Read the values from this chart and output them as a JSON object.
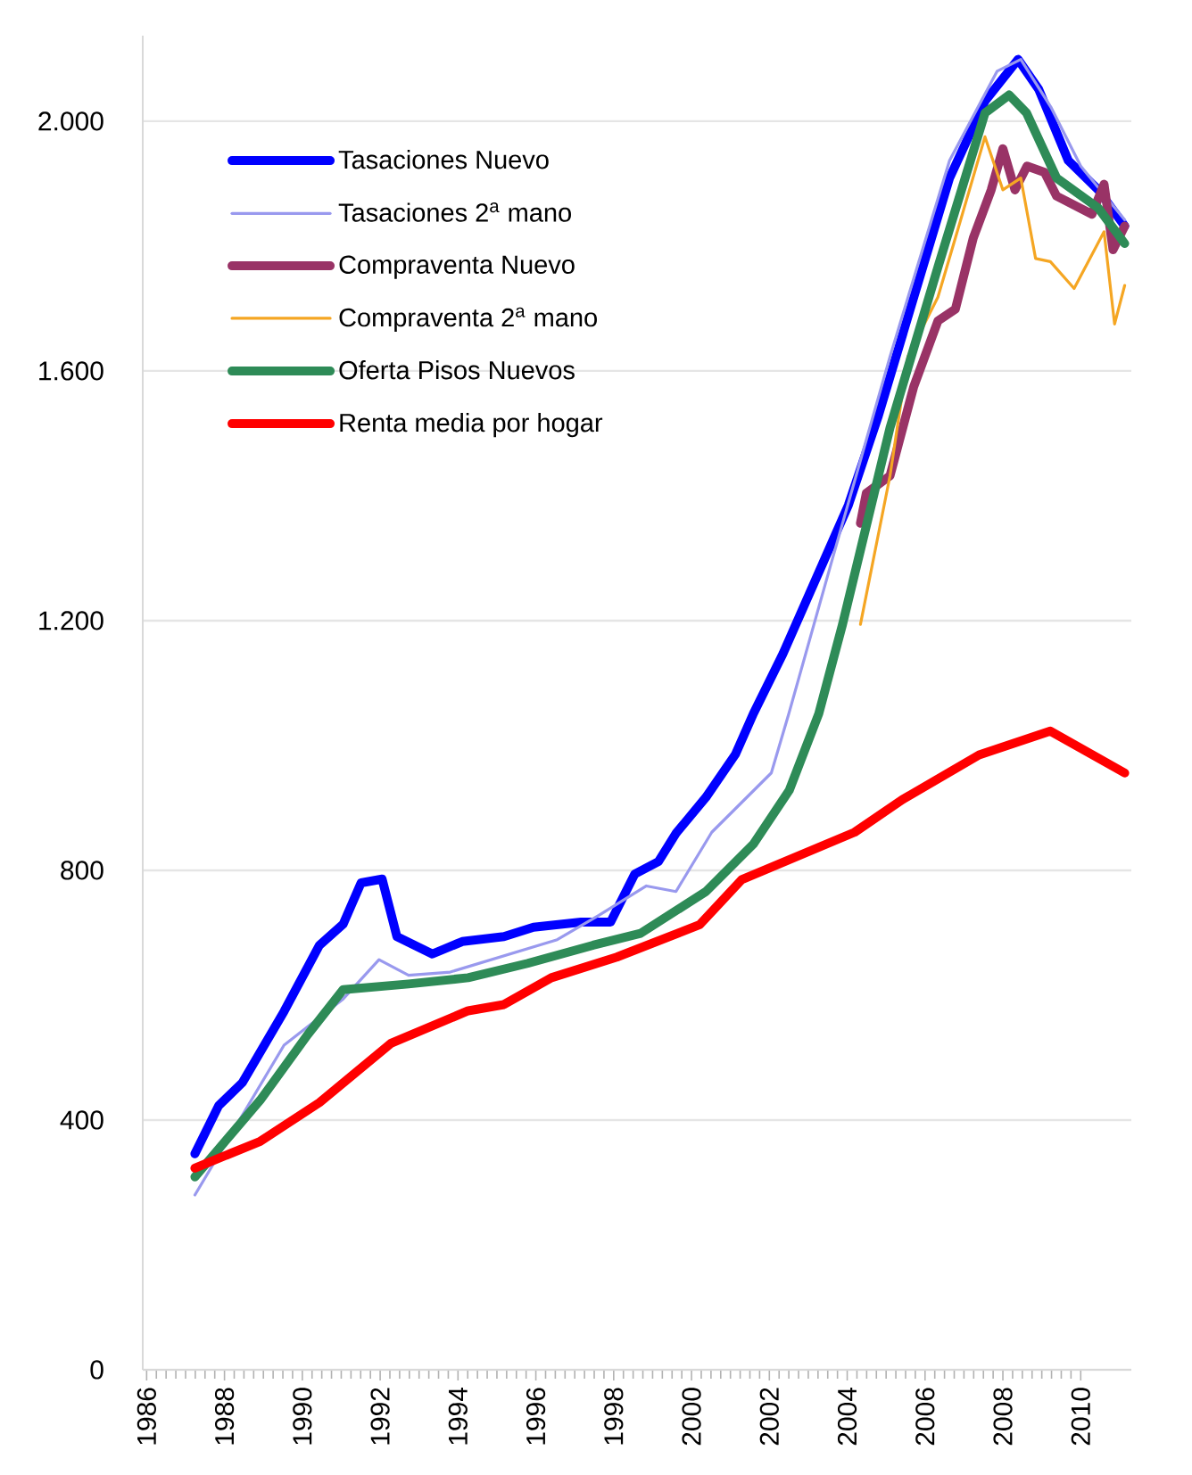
{
  "chart_data": {
    "type": "line",
    "xlim": [
      1985.9,
      2011.3
    ],
    "xticks": [
      1986,
      1988,
      1990,
      1992,
      1994,
      1996,
      1998,
      2000,
      2002,
      2004,
      2006,
      2008,
      2010
    ],
    "ylim": [
      0,
      2137
    ],
    "yticks": [
      0,
      400,
      800,
      {
        "value": 1200,
        "label": "1.200"
      },
      {
        "value": 1600,
        "label": "1.600"
      },
      {
        "value": 2000,
        "label": "2.000"
      }
    ],
    "grid": "y",
    "legend": "top left",
    "series": [
      {
        "name": "Tasaciones Nuevo",
        "color": "#0000ff",
        "x": [
          1987.24,
          1987.85,
          1988.46,
          1989.53,
          1990.44,
          1991.05,
          1991.51,
          1992.05,
          1992.43,
          1993.34,
          1994.11,
          1995.18,
          1995.94,
          1997.16,
          1997.92,
          1998.54,
          1999.15,
          1999.61,
          2000.37,
          2001.13,
          2001.59,
          2002.35,
          2004.03,
          2004.8,
          2005.71,
          2006.63,
          2007.54,
          2008.39,
          2008.92,
          2009.68,
          2010.45,
          2011.13
        ],
        "values": [
          346,
          423,
          460,
          574,
          680,
          714,
          780,
          786,
          694,
          666,
          686,
          694,
          709,
          717,
          717,
          794,
          814,
          860,
          917,
          986,
          1051,
          1147,
          1385,
          1528,
          1718,
          1909,
          2032,
          2099,
          2051,
          1937,
          1890,
          1832
        ]
      },
      {
        "name": "Tasaciones 2$^{a}$ mano",
        "color": "#9999ee",
        "x": [
          1987.24,
          1989.53,
          1991.05,
          1991.97,
          1992.73,
          1993.8,
          1996.55,
          1997.62,
          1998.84,
          1999.6,
          2000.52,
          2002.05,
          2002.5,
          2003.58,
          2005.1,
          2006.63,
          2007.85,
          2008.46,
          2009.23,
          2010.0,
          2011.13
        ],
        "values": [
          280,
          520,
          594,
          657,
          632,
          637,
          689,
          728,
          775,
          766,
          861,
          956,
          1051,
          1290,
          1623,
          1937,
          2080,
          2099,
          2023,
          1928,
          1842
        ]
      },
      {
        "name": "Compraventa Nuevo",
        "color": "#993366",
        "x": [
          2004.34,
          2004.49,
          2005.1,
          2005.71,
          2006.33,
          2006.78,
          2007.24,
          2007.7,
          2008.0,
          2008.31,
          2008.62,
          2009.07,
          2009.38,
          2010.29,
          2010.6,
          2010.83,
          2011.13
        ],
        "values": [
          1356,
          1404,
          1432,
          1575,
          1680,
          1699,
          1813,
          1890,
          1956,
          1890,
          1928,
          1918,
          1880,
          1851,
          1899,
          1794,
          1832
        ]
      },
      {
        "name": "Compraventa 2$^{a}$ mano",
        "color": "#f5a623",
        "x": [
          2004.34,
          2005.1,
          2005.56,
          2006.33,
          2006.78,
          2007.54,
          2008.0,
          2008.46,
          2008.84,
          2009.22,
          2009.83,
          2010.6,
          2010.87,
          2011.13
        ],
        "values": [
          1194,
          1432,
          1623,
          1718,
          1813,
          1975,
          1890,
          1909,
          1780,
          1775,
          1732,
          1823,
          1675,
          1737
        ]
      },
      {
        "name": "Oferta Pisos Nuevos",
        "color": "#2e8b57",
        "x": [
          1987.24,
          1988.92,
          1990.14,
          1991.05,
          1992.73,
          1994.26,
          1995.79,
          1997.47,
          1998.69,
          2000.37,
          2001.59,
          2002.51,
          2003.27,
          2003.88,
          2005.1,
          2006.33,
          2007.54,
          2008.16,
          2008.61,
          2009.38,
          2010.45,
          2011.13
        ],
        "values": [
          309,
          432,
          537,
          609,
          618,
          628,
          651,
          680,
          699,
          766,
          842,
          928,
          1051,
          1194,
          1509,
          1766,
          2013,
          2042,
          2013,
          1909,
          1861,
          1804
        ]
      },
      {
        "name": "Renta media por hogar",
        "color": "#ff0000",
        "x": [
          1987.24,
          1988.92,
          1990.44,
          1992.28,
          1994.26,
          1995.18,
          1996.4,
          1998.08,
          2000.21,
          2001.29,
          2004.19,
          2005.41,
          2007.39,
          2009.22,
          2011.13
        ],
        "values": [
          323,
          366,
          428,
          523,
          575,
          585,
          628,
          661,
          713,
          785,
          861,
          913,
          985,
          1023,
          956
        ]
      }
    ]
  }
}
